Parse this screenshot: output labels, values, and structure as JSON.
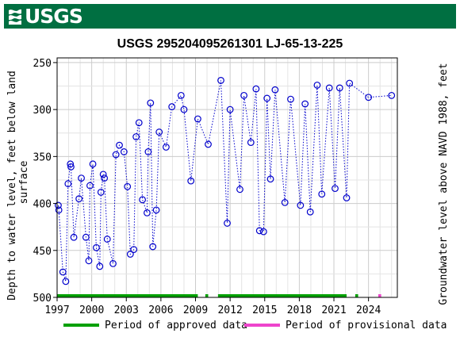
{
  "header": {
    "agency": "USGS"
  },
  "chart_data": {
    "type": "scatter",
    "title": "USGS 295204095261301 LJ-65-13-225",
    "ylabel_left": "Depth to water level, feet below land surface",
    "ylabel_right": "Groundwater level above NAVD 1988, feet",
    "x_ticks": [
      "1997",
      "2000",
      "2003",
      "2006",
      "2009",
      "2012",
      "2015",
      "2018",
      "2021",
      "2024"
    ],
    "xlim": [
      1997.0,
      2026.5
    ],
    "ylim_left": [
      500,
      245
    ],
    "y_ticks_left": [
      250,
      300,
      350,
      400,
      450,
      500
    ],
    "y_ticks_right": [
      -200,
      -250,
      -300,
      -350,
      -400
    ],
    "right_axis_offset": -81,
    "grid": true,
    "series": [
      {
        "name": "measured",
        "color": "#0000cc",
        "x": [
          1997.1,
          1997.15,
          1997.5,
          1997.75,
          1997.95,
          1998.15,
          1998.2,
          1998.45,
          1998.9,
          1999.1,
          1999.5,
          1999.75,
          1999.85,
          2000.1,
          2000.4,
          2000.7,
          2000.8,
          2001.0,
          2001.1,
          2001.35,
          2001.85,
          2002.1,
          2002.4,
          2002.8,
          2003.1,
          2003.35,
          2003.65,
          2003.85,
          2004.1,
          2004.4,
          2004.8,
          2004.9,
          2005.1,
          2005.3,
          2005.6,
          2005.85,
          2006.45,
          2006.95,
          2007.75,
          2008.0,
          2008.6,
          2009.2,
          2010.1,
          2011.2,
          2011.75,
          2012.0,
          2012.85,
          2013.2,
          2013.8,
          2014.25,
          2014.55,
          2014.9,
          2015.2,
          2015.5,
          2015.9,
          2016.75,
          2017.25,
          2018.1,
          2018.5,
          2018.95,
          2019.55,
          2019.95,
          2020.6,
          2021.1,
          2021.5,
          2022.1,
          2022.35,
          2024.0,
          2026.0
        ],
        "y": [
          402,
          407,
          473,
          483,
          379,
          358,
          361,
          436,
          395,
          373,
          436,
          461,
          381,
          358,
          447,
          467,
          388,
          369,
          373,
          438,
          464,
          348,
          338,
          345,
          382,
          454,
          449,
          329,
          314,
          396,
          410,
          345,
          293,
          446,
          407,
          324,
          340,
          297,
          285,
          300,
          376,
          310,
          337,
          269,
          421,
          300,
          385,
          285,
          335,
          278,
          429,
          430,
          288,
          374,
          279,
          399,
          289,
          402,
          294,
          409,
          274,
          390,
          277,
          384,
          277,
          394,
          272,
          287,
          285
        ]
      }
    ],
    "approved_periods": [
      [
        1997.0,
        2009.2
      ],
      [
        2009.85,
        2010.1
      ],
      [
        2010.95,
        2022.1
      ],
      [
        2022.85,
        2023.1
      ]
    ],
    "provisional_periods": [
      [
        2024.85,
        2025.1
      ]
    ],
    "legend": {
      "approved": "Period of approved data",
      "provisional": "Period of provisional data",
      "approved_color": "#00a000",
      "provisional_color": "#ee44cc"
    }
  }
}
